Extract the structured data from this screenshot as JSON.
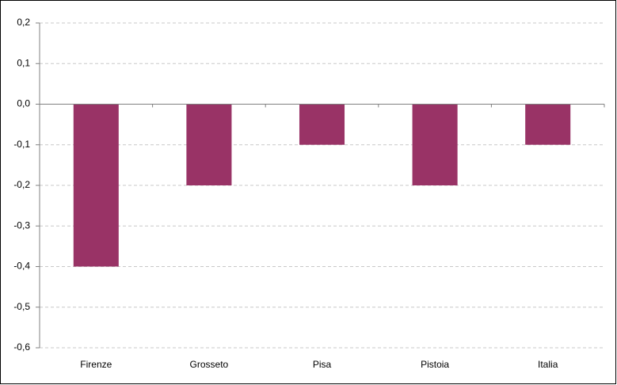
{
  "chart_data": {
    "type": "bar",
    "categories": [
      "Firenze",
      "Grosseto",
      "Pisa",
      "Pistoia",
      "Italia"
    ],
    "values": [
      -0.4,
      -0.2,
      -0.1,
      -0.2,
      -0.1
    ],
    "color": "#993366",
    "ylim": [
      -0.6,
      0.2
    ],
    "yticks": [
      {
        "value": 0.2,
        "label": "0,2"
      },
      {
        "value": 0.1,
        "label": "0,1"
      },
      {
        "value": 0,
        "label": "0,0"
      },
      {
        "value": -0.1,
        "label": "-0,1"
      },
      {
        "value": -0.2,
        "label": "-0,2"
      },
      {
        "value": -0.3,
        "label": "-0,3"
      },
      {
        "value": -0.4,
        "label": "-0,4"
      },
      {
        "value": -0.5,
        "label": "-0,5"
      },
      {
        "value": -0.6,
        "label": "-0,6"
      }
    ],
    "grid": true
  }
}
